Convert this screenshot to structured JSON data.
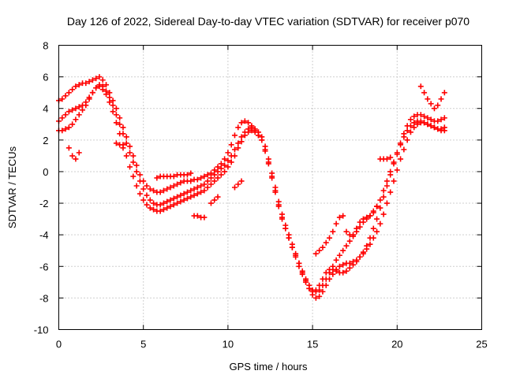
{
  "chart_data": {
    "type": "scatter",
    "title": "Day 126 of 2022, Sidereal Day-to-day VTEC variation (SDTVAR) for receiver p070",
    "xlabel": "GPS time / hours",
    "ylabel": "SDTVAR / TECUs",
    "xlim": [
      0,
      25
    ],
    "ylim": [
      -10,
      8
    ],
    "xticks": [
      "0",
      "5",
      "10",
      "15",
      "20",
      "25"
    ],
    "yticks": [
      "-10",
      "-8",
      "-6",
      "-4",
      "-2",
      "0",
      "2",
      "4",
      "6",
      "8"
    ],
    "grid": true,
    "marker": "plus",
    "color": "#ff0000",
    "series": [
      {
        "x": [
          0.0,
          0.2,
          0.4,
          0.6,
          0.8,
          1.0,
          1.2,
          1.4,
          1.6,
          1.8,
          2.0,
          2.2,
          2.4,
          2.6,
          2.8,
          3.0,
          3.2,
          3.4,
          3.6,
          3.8,
          4.0,
          4.2,
          4.4,
          4.6,
          4.8,
          5.0,
          5.2,
          5.4,
          5.6,
          5.8,
          6.0,
          6.2,
          6.4,
          6.6,
          6.8,
          7.0,
          7.2,
          7.4,
          7.6,
          7.8,
          8.0,
          8.2,
          8.4,
          8.6,
          8.8,
          9.0,
          9.2,
          9.4,
          9.6,
          9.8,
          10.0,
          10.2,
          10.4,
          10.6,
          10.8,
          11.0,
          11.2,
          11.4,
          11.6,
          11.8,
          12.0,
          12.2,
          12.4,
          12.6,
          12.8,
          13.0,
          13.2,
          13.4,
          13.6,
          13.8,
          14.0,
          14.2,
          14.4,
          14.6,
          14.8,
          15.0,
          15.2,
          15.4,
          15.6,
          15.8,
          16.0,
          16.2,
          16.4,
          16.6,
          16.8,
          17.0,
          17.2,
          17.4,
          17.6,
          17.8,
          18.0,
          18.2,
          18.4,
          18.6,
          18.8,
          19.0,
          19.2,
          19.4,
          19.6,
          19.8,
          20.0,
          20.2,
          20.4,
          20.6,
          20.8,
          21.0,
          21.2,
          21.4,
          21.6,
          21.8,
          22.0,
          22.2,
          22.4,
          22.6,
          22.8
        ],
        "y": [
          4.5,
          4.6,
          4.8,
          5.0,
          5.2,
          5.4,
          5.5,
          5.6,
          5.6,
          5.7,
          5.8,
          5.9,
          6.0,
          5.8,
          5.5,
          5.0,
          4.5,
          4.0,
          3.4,
          2.8,
          2.2,
          1.6,
          1.0,
          0.4,
          -0.2,
          -0.6,
          -0.9,
          -1.1,
          -1.2,
          -1.3,
          -1.3,
          -1.2,
          -1.1,
          -1.0,
          -0.9,
          -0.8,
          -0.7,
          -0.6,
          -0.6,
          -0.6,
          -0.5,
          -0.5,
          -0.4,
          -0.3,
          -0.2,
          -0.1,
          0.1,
          0.3,
          0.5,
          0.8,
          1.2,
          1.7,
          2.3,
          2.8,
          3.1,
          3.2,
          3.1,
          2.9,
          2.6,
          2.3,
          2.0,
          1.3,
          0.5,
          -0.4,
          -1.3,
          -2.2,
          -3.0,
          -3.6,
          -4.2,
          -4.8,
          -5.3,
          -5.8,
          -6.3,
          -6.8,
          -7.2,
          -7.5,
          -7.6,
          -7.5,
          -7.2,
          -6.8,
          -6.4,
          -6.0,
          -5.6,
          -5.3,
          -5.0,
          -4.7,
          -4.4,
          -4.1,
          -3.8,
          -3.5,
          -3.2,
          -3.0,
          -2.8,
          -2.5,
          -2.2,
          -1.8,
          -1.2,
          -0.6,
          0.0,
          0.6,
          1.2,
          1.8,
          2.4,
          2.9,
          3.3,
          3.5,
          3.6,
          3.6,
          3.5,
          3.4,
          3.3,
          3.2,
          3.2,
          3.3,
          3.4
        ]
      },
      {
        "x": [
          0.0,
          0.2,
          0.4,
          0.6,
          0.8,
          1.0,
          1.2,
          1.4,
          1.6,
          1.8,
          2.0,
          2.2,
          2.4,
          2.6,
          2.8,
          3.0,
          3.2,
          3.4,
          3.6,
          3.8,
          4.0,
          4.2,
          4.4,
          4.6,
          4.8,
          5.0,
          5.2,
          5.4,
          5.6,
          5.8,
          6.0,
          6.2,
          6.4,
          6.6,
          6.8,
          7.0,
          7.2,
          7.4,
          7.6,
          7.8,
          8.0,
          8.2,
          8.4,
          8.6,
          8.8,
          9.0,
          9.2,
          9.4,
          9.6,
          9.8,
          10.0,
          10.2,
          10.4,
          10.6,
          10.8,
          11.0,
          11.2,
          11.4,
          11.6,
          11.8,
          12.0,
          12.2,
          12.4,
          12.6,
          12.8,
          13.0,
          13.2,
          13.4,
          13.6,
          13.8,
          14.0,
          14.2,
          14.4,
          14.6,
          14.8,
          15.0,
          15.2,
          15.4,
          15.6,
          15.8,
          16.0,
          16.2,
          16.4,
          16.6,
          16.8,
          17.0,
          17.2,
          17.4,
          17.6,
          17.8,
          18.0,
          18.2,
          18.4,
          18.6,
          18.8,
          19.0,
          19.2,
          19.4,
          19.6,
          19.8,
          20.0,
          20.2,
          20.4,
          20.6,
          20.8,
          21.0,
          21.2,
          21.4,
          21.6,
          21.8,
          22.0,
          22.2,
          22.4,
          22.6,
          22.8
        ],
        "y": [
          3.2,
          3.4,
          3.6,
          3.8,
          3.9,
          4.0,
          4.1,
          4.2,
          4.4,
          4.7,
          5.0,
          5.3,
          5.5,
          5.4,
          5.1,
          4.7,
          4.2,
          3.6,
          3.0,
          2.4,
          1.8,
          1.2,
          0.6,
          0.0,
          -0.6,
          -1.1,
          -1.5,
          -1.8,
          -2.0,
          -2.1,
          -2.1,
          -2.0,
          -1.9,
          -1.8,
          -1.7,
          -1.6,
          -1.5,
          -1.4,
          -1.3,
          -1.2,
          -1.1,
          -1.0,
          -0.9,
          -0.8,
          -0.6,
          -0.4,
          -0.2,
          0.0,
          0.2,
          0.4,
          0.7,
          1.0,
          1.4,
          1.8,
          2.2,
          2.5,
          2.7,
          2.8,
          2.7,
          2.5,
          2.2,
          1.6,
          0.8,
          -0.1,
          -1.0,
          -1.9,
          -2.7,
          -3.4,
          -4.0,
          -4.6,
          -5.2,
          -5.8,
          -6.4,
          -6.9,
          -7.4,
          -7.8,
          -8.0,
          -7.9,
          -7.6,
          -7.2,
          -6.8,
          -6.5,
          -6.2,
          -6.0,
          -5.9,
          -5.8,
          -5.8,
          -5.7,
          -5.6,
          -5.4,
          -5.2,
          -4.9,
          -4.6,
          -4.2,
          -3.8,
          -3.3,
          -2.7,
          -2.0,
          -1.3,
          -0.6,
          0.1,
          0.8,
          1.4,
          2.0,
          2.5,
          2.8,
          3.0,
          3.1,
          3.1,
          3.0,
          2.9,
          2.8,
          2.7,
          2.7,
          2.8
        ]
      },
      {
        "x": [
          0.0,
          0.2,
          0.4,
          0.6,
          0.8,
          1.0,
          1.2,
          1.4,
          1.6,
          1.8,
          2.0,
          2.2,
          2.4,
          2.6,
          2.8,
          3.0,
          3.2,
          3.4,
          3.6,
          3.8,
          4.0,
          4.2,
          4.4,
          4.6,
          4.8,
          5.0,
          5.2,
          5.4,
          5.6,
          5.8,
          6.0,
          6.2,
          6.4,
          6.6,
          6.8,
          7.0,
          7.2,
          7.4,
          7.6,
          7.8,
          8.0,
          8.2,
          8.4,
          8.6,
          8.8,
          9.0,
          9.2,
          9.4,
          9.6,
          9.8,
          10.0,
          10.2,
          10.4,
          10.6,
          10.8,
          11.0,
          11.2,
          11.4,
          11.6,
          11.8,
          12.0,
          12.2,
          12.4,
          12.6,
          12.8,
          13.0,
          13.2,
          13.4,
          13.6,
          13.8,
          14.0,
          14.2,
          14.4,
          14.6,
          14.8,
          15.0,
          15.2,
          15.4,
          15.6,
          15.8,
          16.0,
          16.2,
          16.4,
          16.6,
          16.8,
          17.0,
          17.2,
          17.4,
          17.6,
          17.8,
          18.0,
          18.2,
          18.4,
          18.6,
          18.8,
          19.0,
          19.2,
          19.4,
          19.6,
          19.8,
          20.0,
          20.2,
          20.4,
          20.6,
          20.8,
          21.0,
          21.2,
          21.4,
          21.6,
          21.8,
          22.0,
          22.2,
          22.4,
          22.6,
          22.8
        ],
        "y": [
          2.6,
          2.6,
          2.7,
          2.8,
          3.0,
          3.3,
          3.6,
          3.9,
          4.2,
          4.6,
          5.0,
          5.3,
          5.4,
          5.2,
          4.9,
          4.4,
          3.8,
          3.1,
          2.4,
          1.7,
          1.0,
          0.3,
          -0.3,
          -0.9,
          -1.4,
          -1.8,
          -2.1,
          -2.3,
          -2.4,
          -2.5,
          -2.5,
          -2.4,
          -2.3,
          -2.2,
          -2.1,
          -2.0,
          -1.9,
          -1.8,
          -1.7,
          -1.6,
          -1.5,
          -1.4,
          -1.3,
          -1.2,
          -1.0,
          -0.8,
          -0.6,
          -0.4,
          -0.2,
          0.0,
          0.3,
          0.6,
          1.0,
          1.5,
          1.9,
          2.3,
          2.5,
          2.6,
          2.5,
          2.3,
          2.0,
          1.4,
          0.6,
          -0.3,
          -1.2,
          -2.1,
          -2.9,
          -3.6,
          -4.2,
          -4.8,
          -5.4,
          -6.0,
          -6.5,
          -7.0,
          -7.4,
          -7.6,
          -7.5,
          -7.2,
          -6.8,
          -6.4,
          -6.2,
          -6.2,
          -6.3,
          -6.4,
          -6.4,
          -6.3,
          -6.1,
          -5.9,
          -5.7,
          -5.4,
          -5.1,
          -4.7,
          -4.2,
          -3.6,
          -3.0,
          -2.3,
          -1.6,
          -0.9,
          -0.2,
          0.5,
          1.1,
          1.7,
          2.2,
          2.6,
          2.9,
          3.1,
          3.2,
          3.2,
          3.1,
          3.0,
          2.9,
          2.8,
          2.7,
          2.6,
          2.6
        ]
      },
      {
        "x": [
          0.6,
          0.8,
          1.0,
          1.2,
          3.4,
          3.6,
          3.8,
          5.8,
          6.0,
          6.2,
          6.4,
          6.6,
          6.8,
          7.0,
          7.2,
          7.4,
          7.6,
          7.8,
          8.0,
          8.2,
          8.4,
          8.6,
          9.0,
          9.2,
          9.4,
          10.4,
          10.6,
          10.8,
          15.2,
          15.4,
          15.6,
          15.8,
          16.0,
          16.2,
          16.4,
          16.6,
          16.8,
          17.0,
          17.2,
          17.4,
          17.6,
          17.8,
          18.0,
          18.2,
          18.4,
          18.6,
          18.8,
          19.0,
          19.2,
          19.4,
          19.6,
          21.4,
          21.6,
          21.8,
          22.0,
          22.2,
          22.4,
          22.6,
          22.8
        ],
        "y": [
          1.5,
          1.0,
          0.8,
          1.2,
          1.8,
          1.7,
          1.5,
          -0.4,
          -0.3,
          -0.3,
          -0.3,
          -0.3,
          -0.3,
          -0.2,
          -0.2,
          -0.2,
          -0.2,
          -0.1,
          -2.8,
          -2.8,
          -2.9,
          -2.9,
          -2.0,
          -1.8,
          -1.6,
          -1.0,
          -0.8,
          -0.6,
          -5.2,
          -5.0,
          -4.8,
          -4.5,
          -4.2,
          -3.8,
          -3.3,
          -2.9,
          -2.8,
          -3.8,
          -4.0,
          -4.0,
          -3.6,
          -3.2,
          -3.0,
          -2.9,
          -2.8,
          -2.6,
          -2.2,
          0.8,
          0.8,
          0.8,
          0.9,
          5.4,
          5.0,
          4.6,
          4.3,
          4.0,
          4.2,
          4.6,
          5.0
        ]
      }
    ]
  }
}
